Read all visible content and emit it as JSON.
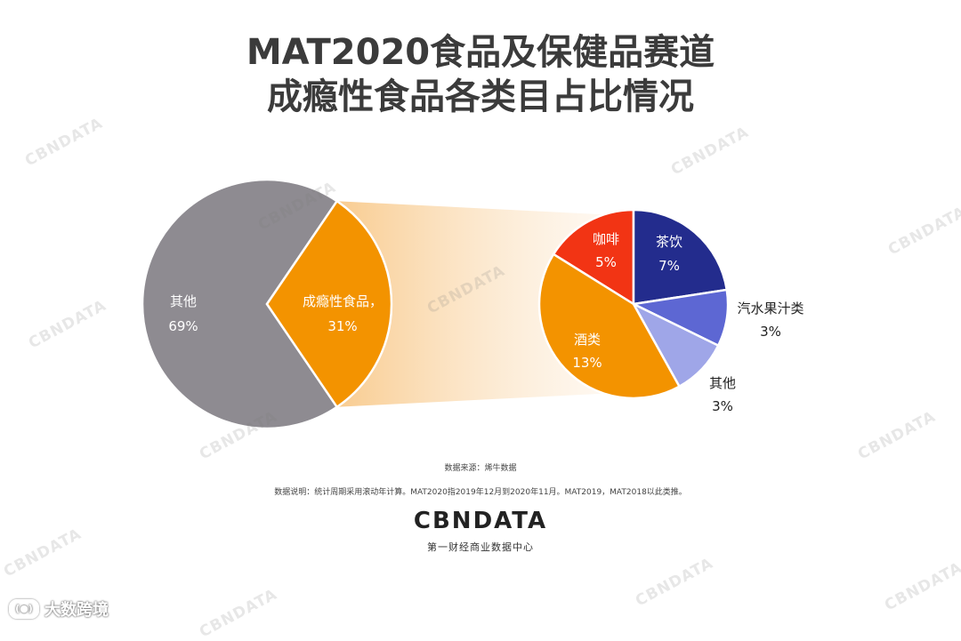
{
  "title": {
    "line1": "MAT2020食品及保健品赛道",
    "line2": "成瘾性食品各类目占比情况"
  },
  "chart_data": [
    {
      "type": "pie",
      "categories": [
        "其他",
        "成瘾性食品，"
      ],
      "values": [
        69,
        31
      ],
      "value_labels": [
        "69%",
        "31%"
      ],
      "colors": [
        "#8e8b91",
        "#f39300"
      ]
    },
    {
      "type": "pie",
      "categories": [
        "咖啡",
        "茶饮",
        "汽水果汁类",
        "其他",
        "酒类"
      ],
      "values": [
        5,
        7,
        3,
        3,
        13
      ],
      "value_labels": [
        "5%",
        "7%",
        "3%",
        "3%",
        "13%"
      ],
      "colors": [
        "#f23414",
        "#232c8d",
        "#5d67d3",
        "#9fa6e8",
        "#f39300"
      ]
    }
  ],
  "footer": {
    "source": "数据来源：烯牛数据",
    "note": "数据说明：统计周期采用滚动年计算。MAT2020指2019年12月到2020年11月。MAT2019，MAT2018以此类推。",
    "logo": "CBNDATA",
    "logo_sub": "第一财经商业数据中心"
  },
  "watermark": {
    "text": "CBNDATA"
  },
  "corner_badge": {
    "icon": "(●)",
    "text": "大数跨境"
  }
}
